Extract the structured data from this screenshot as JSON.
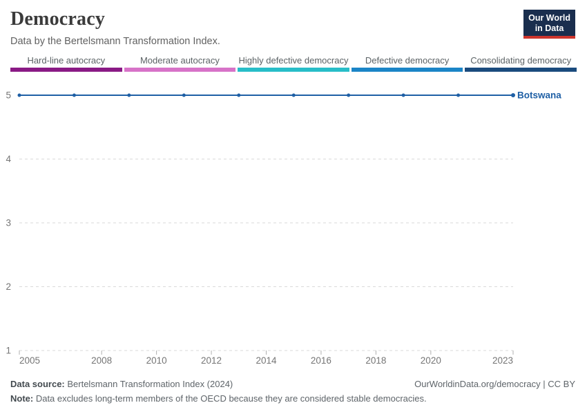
{
  "header": {
    "title": "Democracy",
    "subtitle": "Data by the Bertelsmann Transformation Index.",
    "logo": {
      "line1": "Our World",
      "line2": "in Data",
      "bg_color": "#1a2e4e",
      "stripe_color": "#ce352c"
    }
  },
  "legend": {
    "items": [
      {
        "label": "Hard-line autocracy",
        "color": "#8a1a85"
      },
      {
        "label": "Moderate autocracy",
        "color": "#d773c8"
      },
      {
        "label": "Highly defective democracy",
        "color": "#28bdc8"
      },
      {
        "label": "Defective democracy",
        "color": "#1b85c7"
      },
      {
        "label": "Consolidating democracy",
        "color": "#1a4b7d"
      }
    ]
  },
  "chart_data": {
    "type": "line",
    "title": "Democracy",
    "xlabel": "",
    "ylabel": "",
    "x": [
      2005,
      2007,
      2009,
      2011,
      2013,
      2015,
      2017,
      2019,
      2021,
      2023
    ],
    "series": [
      {
        "name": "Botswana",
        "values": [
          5,
          5,
          5,
          5,
          5,
          5,
          5,
          5,
          5,
          5
        ],
        "color": "#1e5fa5"
      }
    ],
    "end_label": "Botswana",
    "ylim": [
      1,
      5
    ],
    "yticks": [
      1,
      2,
      3,
      4,
      5
    ],
    "xticks": [
      2005,
      2008,
      2010,
      2012,
      2014,
      2016,
      2018,
      2020,
      2023
    ],
    "xrange": [
      2005,
      2023
    ],
    "grid": "horizontal-dashed",
    "legend_position": "top",
    "axis_text_color": "#757575",
    "grid_color": "#d9d9d9",
    "tick_color": "#b0b0b0"
  },
  "footer": {
    "source_label": "Data source:",
    "source_text": " Bertelsmann Transformation Index (2024)",
    "credit": "OurWorldinData.org/democracy | CC BY",
    "note_label": "Note:",
    "note_text": " Data excludes long-term members of the OECD because they are considered stable democracies."
  }
}
